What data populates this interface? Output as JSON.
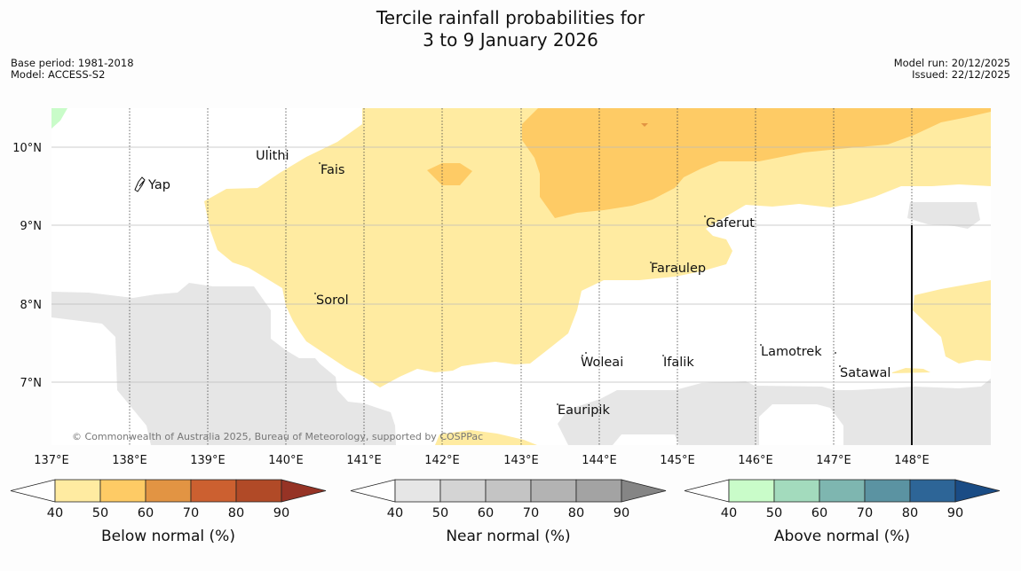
{
  "title": {
    "line1": "Tercile rainfall probabilities for",
    "line2": "3 to 9 January 2026"
  },
  "meta": {
    "base_period": "Base period: 1981-2018",
    "model": "Model: ACCESS-S2",
    "model_run": "Model run: 20/12/2025",
    "issued": "Issued: 22/12/2025"
  },
  "map": {
    "lon_ticks": [
      "137°E",
      "138°E",
      "139°E",
      "140°E",
      "141°E",
      "142°E",
      "143°E",
      "144°E",
      "145°E",
      "146°E",
      "147°E",
      "148°E"
    ],
    "lat_ticks": [
      "10°N",
      "9°N",
      "8°N",
      "7°N"
    ],
    "places": [
      "Yap",
      "Ulithi",
      "Fais",
      "Gaferut",
      "Faraulep",
      "Sorol",
      "Woleai",
      "Ifalik",
      "Lamotrek",
      "Satawal",
      "Eauripik"
    ],
    "copyright": "© Commonwealth of Australia 2025, Bureau of Meteorology, supported by COSPPac"
  },
  "colors": {
    "below": [
      "#ffeba1",
      "#fecb65",
      "#e29443",
      "#cc6030",
      "#b14a27",
      "#963325"
    ],
    "near": [
      "#e6e6e6",
      "#d4d4d4",
      "#c4c4c4",
      "#b3b3b3",
      "#a3a3a3",
      "#858585"
    ],
    "above": [
      "#c9fcc9",
      "#a3dbbd",
      "#7eb6b0",
      "#5b93a2",
      "#2d6597",
      "#1a4c85"
    ]
  },
  "legends": {
    "ticks": [
      "40",
      "50",
      "60",
      "70",
      "80",
      "90"
    ],
    "below_label": "Below normal (%)",
    "near_label": "Near normal (%)",
    "above_label": "Above normal (%)"
  }
}
